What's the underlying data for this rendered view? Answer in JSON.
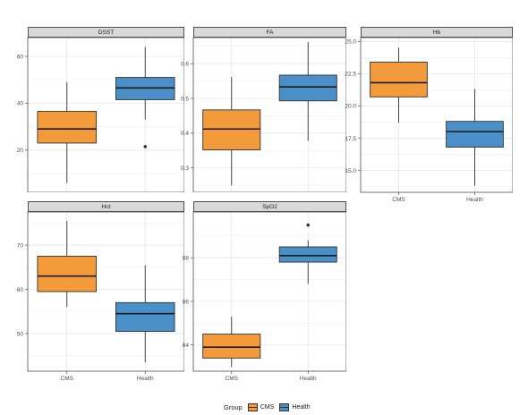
{
  "legend": {
    "title": "Group",
    "items": [
      {
        "label": "CMS",
        "color": "#f39a3b"
      },
      {
        "label": "Health",
        "color": "#4a8fc7"
      }
    ]
  },
  "chart_data": [
    {
      "type": "box",
      "title": "DSST",
      "categories": [
        "CMS",
        "Health"
      ],
      "ylim": [
        2,
        68
      ],
      "yticks": [
        "20",
        "40",
        "60"
      ],
      "boxes": [
        {
          "group": "CMS",
          "min": 6,
          "q1": 23,
          "median": 29,
          "q3": 36.5,
          "max": 49,
          "outliers": []
        },
        {
          "group": "Health",
          "min": 33,
          "q1": 41.5,
          "median": 46.5,
          "q3": 51,
          "max": 64,
          "outliers": [
            21.5
          ]
        }
      ],
      "show_x_axis": false
    },
    {
      "type": "box",
      "title": "FA",
      "categories": [
        "CMS",
        "Health"
      ],
      "ylim": [
        0.23,
        0.675
      ],
      "yticks": [
        "0.3",
        "0.4",
        "0.5",
        "0.6"
      ],
      "boxes": [
        {
          "group": "CMS",
          "min": 0.25,
          "q1": 0.352,
          "median": 0.412,
          "q3": 0.467,
          "max": 0.562,
          "outliers": []
        },
        {
          "group": "Health",
          "min": 0.378,
          "q1": 0.493,
          "median": 0.533,
          "q3": 0.567,
          "max": 0.662,
          "outliers": []
        }
      ],
      "show_x_axis": false
    },
    {
      "type": "box",
      "title": "Hb",
      "categories": [
        "CMS",
        "Health"
      ],
      "ylim": [
        13.3,
        25.3
      ],
      "yticks": [
        "15.0",
        "17.5",
        "20.0",
        "22.5",
        "25.0"
      ],
      "boxes": [
        {
          "group": "CMS",
          "min": 18.7,
          "q1": 20.7,
          "median": 21.8,
          "q3": 23.4,
          "max": 24.5,
          "outliers": []
        },
        {
          "group": "Health",
          "min": 13.8,
          "q1": 16.8,
          "median": 18.0,
          "q3": 18.8,
          "max": 21.3,
          "outliers": []
        }
      ],
      "show_x_axis": true
    },
    {
      "type": "box",
      "title": "Hct",
      "categories": [
        "CMS",
        "Health"
      ],
      "ylim": [
        41.5,
        77.5
      ],
      "yticks": [
        "50",
        "60",
        "70"
      ],
      "boxes": [
        {
          "group": "CMS",
          "min": 56,
          "q1": 59.5,
          "median": 63,
          "q3": 67.5,
          "max": 75.5,
          "outliers": []
        },
        {
          "group": "Health",
          "min": 43.5,
          "q1": 50.5,
          "median": 54.5,
          "q3": 57,
          "max": 65.5,
          "outliers": []
        }
      ],
      "show_x_axis": true
    },
    {
      "type": "box",
      "title": "SpO2",
      "categories": [
        "CMS",
        "Health"
      ],
      "ylim": [
        82.8,
        90.1
      ],
      "yticks": [
        "84",
        "86",
        "88"
      ],
      "boxes": [
        {
          "group": "CMS",
          "min": 83.0,
          "q1": 83.4,
          "median": 83.9,
          "q3": 84.5,
          "max": 85.3,
          "outliers": []
        },
        {
          "group": "Health",
          "min": 86.8,
          "q1": 87.8,
          "median": 88.1,
          "q3": 88.5,
          "max": 88.8,
          "outliers": [
            89.5
          ]
        }
      ],
      "show_x_axis": true
    }
  ]
}
